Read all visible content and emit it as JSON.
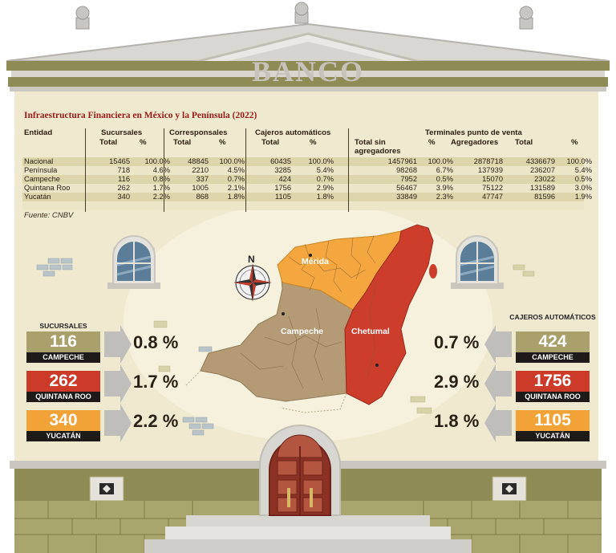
{
  "building": {
    "sign": "BANCO"
  },
  "table": {
    "title": "Infraestructura Financiera en México y la Península (2022)",
    "group_headers": [
      "Sucursales",
      "Corresponsales",
      "Cajeros automáticos",
      "Terminales punto de venta"
    ],
    "column_headers": [
      "Entidad",
      "Total",
      "%",
      "Total",
      "%",
      "Total",
      "%",
      "Total sin agregadores",
      "%",
      "Agregadores",
      "Total",
      "%"
    ],
    "rows": [
      [
        "Nacional",
        "15465",
        "100.0%",
        "48845",
        "100.0%",
        "60435",
        "100.0%",
        "1457961",
        "100.0%",
        "2878718",
        "4336679",
        "100.0%"
      ],
      [
        "Península",
        "718",
        "4.6%",
        "2210",
        "4.5%",
        "3285",
        "5.4%",
        "98268",
        "6.7%",
        "137939",
        "236207",
        "5.4%"
      ],
      [
        "Campeche",
        "116",
        "0.8%",
        "337",
        "0.7%",
        "424",
        "0.7%",
        "7952",
        "0.5%",
        "15070",
        "23022",
        "0.5%"
      ],
      [
        "Quintana Roo",
        "262",
        "1.7%",
        "1005",
        "2.1%",
        "1756",
        "2.9%",
        "56467",
        "3.9%",
        "75122",
        "131589",
        "3.0%"
      ],
      [
        "Yucatán",
        "340",
        "2.2%",
        "868",
        "1.8%",
        "1105",
        "1.8%",
        "33849",
        "2.3%",
        "47747",
        "81596",
        "1.9%"
      ]
    ],
    "source": "Fuente: CNBV"
  },
  "map": {
    "compass": "N",
    "labels": {
      "merida": "Mérida",
      "campeche": "Campeche",
      "chetumal": "Chetumal"
    }
  },
  "left": {
    "caption": "SUCURSALES",
    "items": [
      {
        "value": "116",
        "state": "CAMPECHE",
        "percent": "0.8 %"
      },
      {
        "value": "262",
        "state": "QUINTANA ROO",
        "percent": "1.7 %"
      },
      {
        "value": "340",
        "state": "YUCATÁN",
        "percent": "2.2 %"
      }
    ]
  },
  "right": {
    "caption": "CAJEROS AUTOMÁTICOS",
    "items": [
      {
        "value": "424",
        "state": "CAMPECHE",
        "percent": "0.7 %"
      },
      {
        "value": "1756",
        "state": "QUINTANA ROO",
        "percent": "2.9 %"
      },
      {
        "value": "1105",
        "state": "YUCATÁN",
        "percent": "1.8 %"
      }
    ]
  },
  "colors": {
    "campeche": "#a9a06c",
    "quintana_roo": "#cc3b2a",
    "yucatan": "#f2a338",
    "wall": "#efe9cf",
    "cornice": "#8f8b55",
    "map_campeche": "#b49b76",
    "map_qroo": "#cc3d2b",
    "map_yucatan": "#f4a73e"
  }
}
